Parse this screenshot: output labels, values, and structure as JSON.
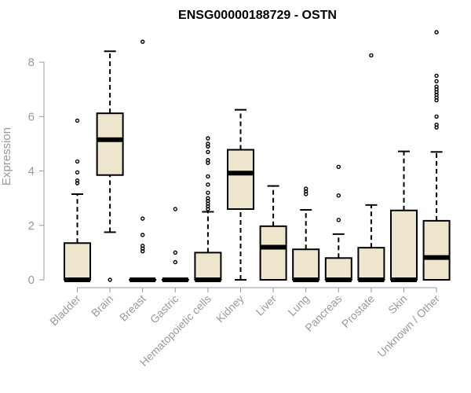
{
  "chart_data": {
    "type": "boxplot",
    "title": "ENSG00000188729 - OSTN",
    "ylabel": "Expression",
    "ylim": [
      0,
      9.1
    ],
    "yticks": [
      0,
      2,
      4,
      6,
      8
    ],
    "colors": {
      "box_fill": "#ede6cd",
      "stroke": "#000000",
      "axis_text": "#9a9a9a",
      "axis_line": "#9a9a9a"
    },
    "categories": [
      "Bladder",
      "Brain",
      "Breast",
      "Gastric",
      "Hematopoietic cells",
      "Kidney",
      "Liver",
      "Lung",
      "Pancreas",
      "Prostate",
      "Skin",
      "Unknown / Other"
    ],
    "boxes": [
      {
        "q1": 0,
        "median": 0,
        "q3": 1.35,
        "whisker_low": 0,
        "whisker_high": 3.15,
        "outliers": [
          3.55,
          3.65,
          3.95,
          4.35,
          5.85
        ]
      },
      {
        "q1": 3.85,
        "median": 5.15,
        "q3": 6.12,
        "whisker_low": 1.75,
        "whisker_high": 8.4,
        "outliers": [
          0
        ]
      },
      {
        "q1": 0,
        "median": 0,
        "q3": 0,
        "whisker_low": 0,
        "whisker_high": 0,
        "outliers": [
          1.05,
          1.15,
          1.25,
          1.65,
          2.25,
          8.75
        ]
      },
      {
        "q1": 0,
        "median": 0,
        "q3": 0,
        "whisker_low": 0,
        "whisker_high": 0,
        "outliers": [
          0.65,
          1.0,
          2.6
        ]
      },
      {
        "q1": 0,
        "median": 0,
        "q3": 1.0,
        "whisker_low": 0,
        "whisker_high": 2.5,
        "outliers": [
          2.6,
          2.7,
          2.8,
          2.9,
          3.0,
          3.2,
          3.5,
          3.8,
          4.3,
          4.4,
          4.7,
          4.9,
          5.0,
          5.2
        ]
      },
      {
        "q1": 2.6,
        "median": 3.92,
        "q3": 4.78,
        "whisker_low": 0,
        "whisker_high": 6.25,
        "outliers": []
      },
      {
        "q1": 0,
        "median": 1.2,
        "q3": 1.97,
        "whisker_low": 0,
        "whisker_high": 3.45,
        "outliers": []
      },
      {
        "q1": 0,
        "median": 0,
        "q3": 1.12,
        "whisker_low": 0,
        "whisker_high": 2.57,
        "outliers": [
          3.15,
          3.25,
          3.35
        ]
      },
      {
        "q1": 0,
        "median": 0,
        "q3": 0.8,
        "whisker_low": 0,
        "whisker_high": 1.68,
        "outliers": [
          2.2,
          3.1,
          4.15
        ]
      },
      {
        "q1": 0,
        "median": 0,
        "q3": 1.18,
        "whisker_low": 0,
        "whisker_high": 2.75,
        "outliers": [
          8.25
        ]
      },
      {
        "q1": 0,
        "median": 0,
        "q3": 2.55,
        "whisker_low": 0,
        "whisker_high": 4.72,
        "outliers": []
      },
      {
        "q1": 0,
        "median": 0.82,
        "q3": 2.17,
        "whisker_low": 0,
        "whisker_high": 4.7,
        "outliers": [
          5.6,
          5.7,
          6.0,
          6.6,
          6.7,
          6.8,
          6.9,
          7.0,
          7.1,
          7.3,
          7.5,
          9.1
        ]
      }
    ]
  }
}
